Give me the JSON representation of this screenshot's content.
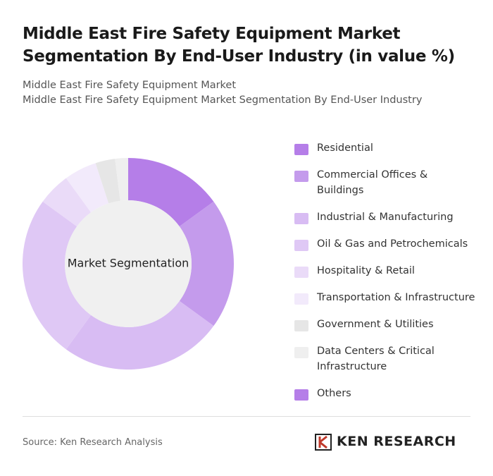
{
  "chart_data": {
    "type": "donut",
    "title": "Middle East Fire Safety Equipment Market Segmentation By End-User Industry (in value %)",
    "subtitle_lines": [
      "Middle East Fire Safety Equipment Market",
      "Middle East Fire Safety Equipment Market Segmentation By End-User Industry"
    ],
    "center_label": "Market Segmentation",
    "categories": [
      "Residential",
      "Commercial Offices & Buildings",
      "Industrial & Manufacturing",
      "Oil & Gas and Petrochemicals",
      "Hospitality & Retail",
      "Transportation & Infrastructure",
      "Government & Utilities",
      "Data Centers & Critical Infrastructure",
      "Others"
    ],
    "values": [
      15,
      20,
      25,
      25,
      5,
      5,
      3,
      2,
      0
    ],
    "colors": [
      "#b57ee8",
      "#c49bec",
      "#d8bcf3",
      "#dfc8f5",
      "#eadbf8",
      "#f2eafb",
      "#e6e6e6",
      "#efefef",
      "#b57ee8"
    ],
    "source": "Source: Ken Research Analysis",
    "brand": "KEN RESEARCH"
  }
}
